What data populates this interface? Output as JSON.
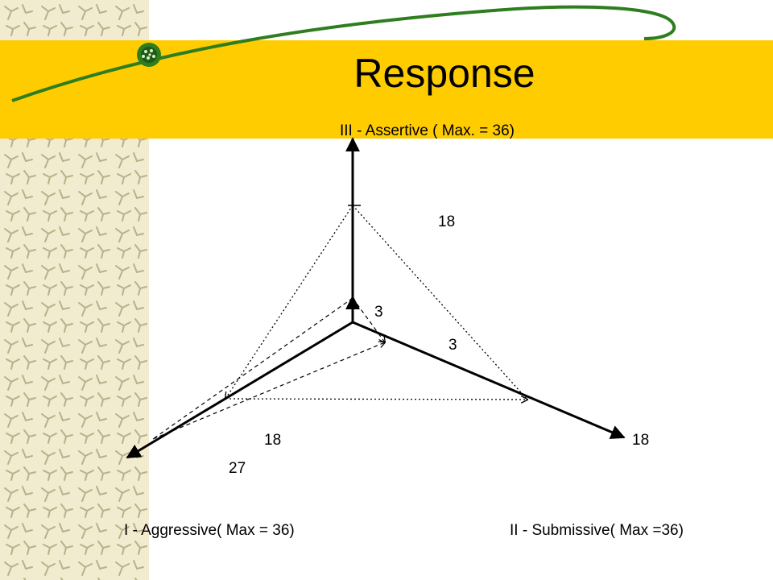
{
  "slide": {
    "title": "Response",
    "colors": {
      "header_band": "#FFCC00",
      "swoosh": "#2E7D1F",
      "side_pattern_bg": "#F1EBCF",
      "side_pattern_marks": "#B9B08A",
      "axis": "#000000"
    }
  },
  "diagram": {
    "axes": {
      "assertive": "III - Assertive ( Max. = 36)",
      "aggressive": "I - Aggressive( Max = 36)",
      "submissive": "II - Submissive( Max =36)"
    },
    "values": {
      "assertive_outer": "18",
      "assertive_inner": "3",
      "submissive_inner": "3",
      "aggressive_outer": "18",
      "submissive_outer": "18",
      "aggressive_extra": "27"
    }
  }
}
